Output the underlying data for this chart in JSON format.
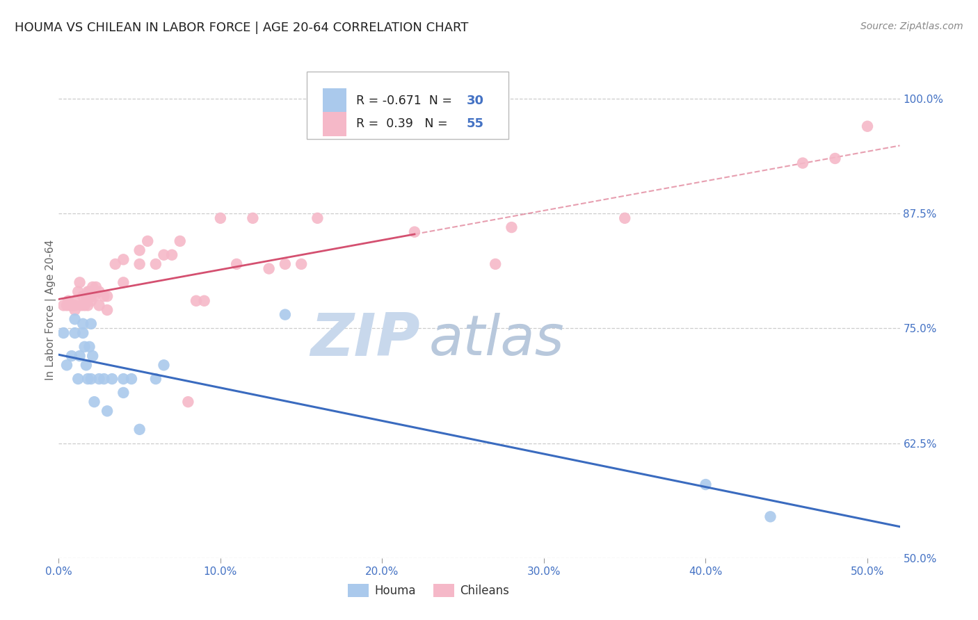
{
  "title": "HOUMA VS CHILEAN IN LABOR FORCE | AGE 20-64 CORRELATION CHART",
  "source": "Source: ZipAtlas.com",
  "ylabel": "In Labor Force | Age 20-64",
  "xlim": [
    0.0,
    0.52
  ],
  "ylim": [
    0.5,
    1.04
  ],
  "x_ticks": [
    0.0,
    0.1,
    0.2,
    0.3,
    0.4,
    0.5
  ],
  "y_ticks": [
    0.5,
    0.625,
    0.75,
    0.875,
    1.0
  ],
  "x_tick_labels": [
    "0.0%",
    "10.0%",
    "20.0%",
    "30.0%",
    "40.0%",
    "50.0%"
  ],
  "y_tick_labels": [
    "50.0%",
    "62.5%",
    "75.0%",
    "87.5%",
    "100.0%"
  ],
  "grid_color": "#c8c8c8",
  "bg_color": "#ffffff",
  "houma_dot_color": "#aac9ec",
  "chilean_dot_color": "#f5b8c8",
  "houma_line_color": "#3a6bbf",
  "chilean_line_color": "#d45070",
  "houma_R": -0.671,
  "houma_N": 30,
  "chilean_R": 0.39,
  "chilean_N": 55,
  "title_color": "#222222",
  "source_color": "#888888",
  "tick_color": "#4472c4",
  "ylabel_color": "#666666",
  "watermark_zip_color": "#c8d8ec",
  "watermark_atlas_color": "#b8c8dc",
  "houma_x": [
    0.003,
    0.005,
    0.008,
    0.01,
    0.01,
    0.012,
    0.013,
    0.015,
    0.015,
    0.016,
    0.017,
    0.018,
    0.019,
    0.02,
    0.02,
    0.021,
    0.022,
    0.025,
    0.028,
    0.03,
    0.033,
    0.04,
    0.04,
    0.045,
    0.05,
    0.06,
    0.065,
    0.14,
    0.4,
    0.44
  ],
  "houma_y": [
    0.745,
    0.71,
    0.72,
    0.745,
    0.76,
    0.695,
    0.72,
    0.745,
    0.755,
    0.73,
    0.71,
    0.695,
    0.73,
    0.755,
    0.695,
    0.72,
    0.67,
    0.695,
    0.695,
    0.66,
    0.695,
    0.68,
    0.695,
    0.695,
    0.64,
    0.695,
    0.71,
    0.765,
    0.58,
    0.545
  ],
  "chilean_x": [
    0.003,
    0.005,
    0.006,
    0.007,
    0.008,
    0.009,
    0.01,
    0.01,
    0.01,
    0.012,
    0.013,
    0.014,
    0.015,
    0.016,
    0.017,
    0.018,
    0.018,
    0.019,
    0.02,
    0.02,
    0.021,
    0.022,
    0.023,
    0.025,
    0.025,
    0.028,
    0.03,
    0.03,
    0.035,
    0.04,
    0.04,
    0.05,
    0.05,
    0.055,
    0.06,
    0.065,
    0.07,
    0.075,
    0.08,
    0.085,
    0.09,
    0.1,
    0.11,
    0.12,
    0.13,
    0.14,
    0.15,
    0.16,
    0.22,
    0.27,
    0.28,
    0.35,
    0.46,
    0.48,
    0.5
  ],
  "chilean_y": [
    0.775,
    0.775,
    0.78,
    0.775,
    0.775,
    0.775,
    0.77,
    0.775,
    0.78,
    0.79,
    0.8,
    0.775,
    0.785,
    0.775,
    0.785,
    0.775,
    0.79,
    0.79,
    0.78,
    0.785,
    0.795,
    0.785,
    0.795,
    0.775,
    0.79,
    0.785,
    0.77,
    0.785,
    0.82,
    0.8,
    0.825,
    0.82,
    0.835,
    0.845,
    0.82,
    0.83,
    0.83,
    0.845,
    0.67,
    0.78,
    0.78,
    0.87,
    0.82,
    0.87,
    0.815,
    0.82,
    0.82,
    0.87,
    0.855,
    0.82,
    0.86,
    0.87,
    0.93,
    0.935,
    0.97
  ]
}
